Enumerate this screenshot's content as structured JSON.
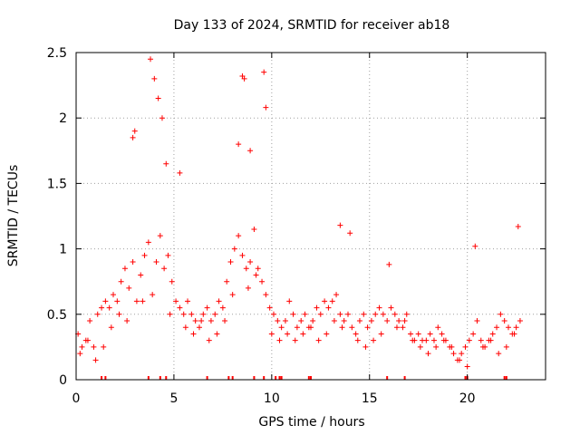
{
  "chart_data": {
    "type": "scatter",
    "title": "Day 133 of 2024, SRMTID for receiver ab18",
    "xlabel": "GPS time / hours",
    "ylabel": "SRMTID / TECUs",
    "xlim": [
      0,
      24
    ],
    "ylim": [
      0,
      2.5
    ],
    "xticks": [
      0,
      5,
      10,
      15,
      20
    ],
    "yticks": [
      0,
      0.5,
      1,
      1.5,
      2,
      2.5
    ],
    "xtick_labels": [
      "0",
      "5",
      "10",
      "15",
      "20"
    ],
    "ytick_labels": [
      "0",
      "0.5",
      "1",
      "1.5",
      "2",
      "2.5"
    ],
    "grid": true,
    "marker": "plus",
    "color": "#ff0000",
    "series": [
      {
        "name": "SRMTID",
        "x": [
          0.1,
          0.3,
          0.5,
          0.7,
          0.9,
          1.1,
          1.3,
          1.5,
          1.7,
          1.9,
          2.1,
          2.3,
          2.5,
          2.7,
          2.9,
          3.1,
          3.3,
          3.5,
          3.7,
          3.9,
          4.1,
          4.3,
          4.5,
          4.7,
          4.9,
          5.1,
          5.3,
          5.5,
          5.7,
          5.9,
          6.1,
          6.3,
          6.5,
          6.7,
          6.9,
          7.1,
          7.3,
          7.5,
          7.7,
          7.9,
          8.1,
          8.3,
          8.5,
          8.7,
          8.9,
          9.1,
          9.3,
          9.5,
          9.7,
          9.9,
          10.1,
          10.3,
          10.5,
          10.7,
          10.9,
          11.1,
          11.3,
          11.5,
          11.7,
          11.9,
          12.1,
          12.3,
          12.5,
          12.7,
          12.9,
          13.1,
          13.3,
          13.5,
          13.7,
          13.9,
          14.1,
          14.3,
          14.5,
          14.7,
          14.9,
          15.1,
          15.3,
          15.5,
          15.7,
          15.9,
          16.1,
          16.3,
          16.5,
          16.7,
          16.9,
          17.1,
          17.3,
          17.5,
          17.7,
          17.9,
          18.1,
          18.3,
          18.5,
          18.7,
          18.9,
          19.1,
          19.3,
          19.5,
          19.7,
          19.9,
          20.1,
          20.3,
          20.5,
          20.7,
          20.9,
          21.1,
          21.3,
          21.5,
          21.7,
          21.9,
          22.1,
          22.3,
          22.5,
          22.7,
          3.8,
          4.0,
          4.2,
          4.4,
          8.5,
          8.6,
          9.6,
          9.7,
          3.0,
          2.9,
          8.3,
          8.9,
          5.3,
          4.6,
          13.5,
          14.0,
          16.0,
          20.4,
          22.6,
          0.2,
          0.6,
          1.0,
          1.4,
          1.8,
          2.2,
          2.6,
          3.4,
          4.8,
          5.6,
          6.0,
          6.4,
          6.8,
          7.2,
          7.6,
          8.0,
          8.8,
          9.2,
          10.0,
          10.4,
          10.8,
          11.2,
          11.6,
          12.0,
          12.4,
          12.8,
          13.2,
          13.6,
          14.4,
          14.8,
          15.2,
          15.6,
          16.4,
          16.8,
          17.2,
          17.6,
          18.0,
          18.4,
          18.8,
          19.2,
          19.6,
          20.0,
          20.8,
          21.2,
          21.6,
          22.0,
          22.4
        ],
        "y": [
          0.35,
          0.25,
          0.3,
          0.45,
          0.25,
          0.5,
          0.55,
          0.6,
          0.55,
          0.65,
          0.6,
          0.75,
          0.85,
          0.7,
          0.9,
          0.6,
          0.8,
          0.95,
          1.05,
          0.65,
          0.9,
          1.1,
          0.85,
          0.95,
          0.75,
          0.6,
          0.55,
          0.5,
          0.6,
          0.5,
          0.45,
          0.4,
          0.5,
          0.55,
          0.45,
          0.5,
          0.6,
          0.55,
          0.75,
          0.9,
          1.0,
          1.1,
          0.95,
          0.85,
          0.9,
          1.15,
          0.85,
          0.75,
          0.65,
          0.55,
          0.5,
          0.45,
          0.4,
          0.45,
          0.6,
          0.5,
          0.4,
          0.45,
          0.5,
          0.4,
          0.45,
          0.55,
          0.5,
          0.6,
          0.55,
          0.6,
          0.65,
          0.5,
          0.45,
          0.5,
          0.4,
          0.35,
          0.45,
          0.5,
          0.4,
          0.45,
          0.5,
          0.55,
          0.5,
          0.45,
          0.55,
          0.5,
          0.45,
          0.4,
          0.5,
          0.35,
          0.3,
          0.35,
          0.3,
          0.3,
          0.35,
          0.3,
          0.4,
          0.35,
          0.3,
          0.25,
          0.2,
          0.15,
          0.2,
          0.25,
          0.3,
          0.35,
          0.45,
          0.3,
          0.25,
          0.3,
          0.35,
          0.4,
          0.5,
          0.45,
          0.4,
          0.35,
          0.4,
          0.45,
          2.45,
          2.3,
          2.15,
          2.0,
          2.32,
          2.3,
          2.35,
          2.08,
          1.9,
          1.85,
          1.8,
          1.75,
          1.58,
          1.65,
          1.18,
          1.12,
          0.88,
          1.02,
          1.17,
          0.2,
          0.3,
          0.15,
          0.25,
          0.4,
          0.5,
          0.45,
          0.6,
          0.5,
          0.4,
          0.35,
          0.45,
          0.3,
          0.35,
          0.45,
          0.65,
          0.7,
          0.8,
          0.35,
          0.3,
          0.35,
          0.3,
          0.35,
          0.4,
          0.3,
          0.35,
          0.45,
          0.4,
          0.3,
          0.25,
          0.3,
          0.35,
          0.4,
          0.45,
          0.3,
          0.25,
          0.2,
          0.25,
          0.3,
          0.25,
          0.15,
          0.1,
          0.25,
          0.3,
          0.2,
          0.25,
          0.35
        ],
        "rug_x": [
          1.3,
          1.5,
          3.7,
          4.3,
          4.6,
          6.7,
          7.8,
          8.0,
          9.1,
          9.6,
          10.2,
          10.4,
          10.5,
          11.9,
          12.0,
          15.9,
          16.8,
          19.9,
          20.0,
          21.9,
          22.0
        ]
      }
    ]
  }
}
